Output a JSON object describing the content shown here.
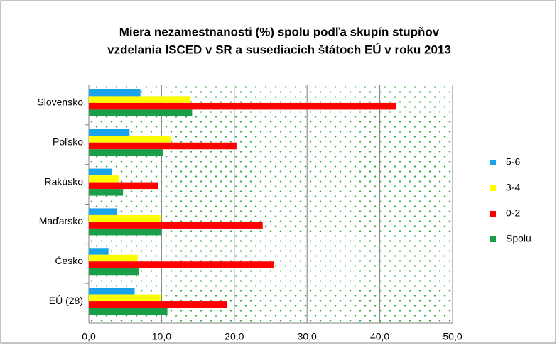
{
  "chart_data": {
    "type": "hbar",
    "title": [
      "Miera nezamestnanosti  (%) spolu podľa skupín stupňov",
      "vzdelania ISCED v SR a susediacich  štátoch EÚ  v roku 2013"
    ],
    "categories": [
      "Slovensko",
      "Poľsko",
      "Rakúsko",
      "Maďarsko",
      "Česko",
      "EÚ (28)"
    ],
    "series": [
      {
        "name": "5-6",
        "color": "#1aa3e8",
        "values": [
          7.1,
          5.6,
          3.2,
          3.9,
          2.7,
          6.3
        ]
      },
      {
        "name": "3-4",
        "color": "#ffff00",
        "values": [
          14.0,
          11.3,
          4.1,
          9.9,
          6.7,
          9.9
        ]
      },
      {
        "name": "0-2",
        "color": "#ff0000",
        "values": [
          42.2,
          20.3,
          9.5,
          23.9,
          25.4,
          19.0
        ]
      },
      {
        "name": "Spolu",
        "color": "#1a9e4a",
        "values": [
          14.2,
          10.2,
          4.7,
          10.0,
          6.9,
          10.8
        ]
      }
    ],
    "xlim": [
      0,
      50
    ],
    "xticks": [
      {
        "value": 0,
        "label": "0,0"
      },
      {
        "value": 10,
        "label": "10,0"
      },
      {
        "value": 20,
        "label": "20,0"
      },
      {
        "value": 30,
        "label": "30,0"
      },
      {
        "value": 40,
        "label": "40,0"
      },
      {
        "value": 50,
        "label": "50,0"
      }
    ],
    "grid": true,
    "legend": "right"
  }
}
